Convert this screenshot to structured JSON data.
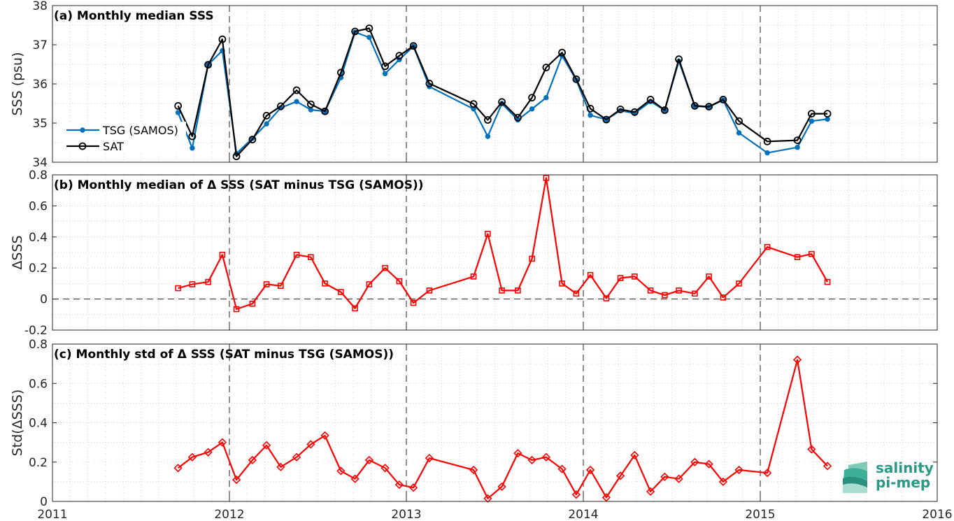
{
  "logo": {
    "line1": "salinity",
    "line2": "pi-mep"
  },
  "colors": {
    "tsg": "#0072bd",
    "sat": "#000000",
    "delta": "#ff0000",
    "logo": "#2a9a86"
  },
  "x_axis": {
    "range": [
      2011,
      2016
    ],
    "ticks": [
      2011,
      2012,
      2013,
      2014,
      2015,
      2016
    ],
    "labels": [
      "2011",
      "2012",
      "2013",
      "2014",
      "2015",
      "2016"
    ]
  },
  "chart_data": [
    {
      "type": "line",
      "title": "(a) Monthly median SSS",
      "ylabel": "SSS (psu)",
      "xlim": [
        2011,
        2016
      ],
      "ylim": [
        34,
        38
      ],
      "yticks": [
        34,
        35,
        36,
        37,
        38
      ],
      "ytick_labels": [
        "34",
        "35",
        "36",
        "37",
        "38"
      ],
      "grid": true,
      "legend_position": "left",
      "series": [
        {
          "name": "TSG (SAMOS)",
          "marker": "dot",
          "x": [
            2011.71,
            2011.79,
            2011.88,
            2011.96,
            2012.04,
            2012.13,
            2012.21,
            2012.29,
            2012.38,
            2012.46,
            2012.54,
            2012.63,
            2012.71,
            2012.79,
            2012.88,
            2012.96,
            2013.04,
            2013.13,
            2013.38,
            2013.46,
            2013.54,
            2013.63,
            2013.71,
            2013.79,
            2013.88,
            2013.96,
            2014.04,
            2014.13,
            2014.21,
            2014.29,
            2014.38,
            2014.46,
            2014.54,
            2014.63,
            2014.71,
            2014.79,
            2014.88,
            2015.04,
            2015.21,
            2015.29,
            2015.38
          ],
          "y": [
            35.27,
            34.36,
            36.49,
            36.85,
            34.22,
            34.61,
            34.98,
            35.39,
            35.55,
            35.34,
            35.3,
            36.16,
            37.32,
            37.19,
            36.26,
            36.62,
            36.96,
            35.93,
            35.36,
            34.66,
            35.5,
            35.08,
            35.36,
            35.65,
            36.72,
            36.1,
            35.2,
            35.09,
            35.32,
            35.25,
            35.55,
            35.33,
            36.58,
            35.43,
            35.41,
            35.59,
            34.75,
            34.24,
            34.38,
            35.05,
            35.1
          ]
        },
        {
          "name": "SAT",
          "marker": "circle",
          "x": [
            2011.71,
            2011.79,
            2011.88,
            2011.96,
            2012.04,
            2012.13,
            2012.21,
            2012.29,
            2012.38,
            2012.46,
            2012.54,
            2012.63,
            2012.71,
            2012.79,
            2012.88,
            2012.96,
            2013.04,
            2013.13,
            2013.38,
            2013.46,
            2013.54,
            2013.63,
            2013.71,
            2013.79,
            2013.88,
            2013.96,
            2014.04,
            2014.13,
            2014.21,
            2014.29,
            2014.38,
            2014.46,
            2014.54,
            2014.63,
            2014.71,
            2014.79,
            2014.88,
            2015.04,
            2015.21,
            2015.29,
            2015.38
          ],
          "y": [
            35.44,
            34.66,
            36.49,
            37.14,
            34.15,
            34.58,
            35.19,
            35.43,
            35.84,
            35.48,
            35.3,
            36.29,
            37.34,
            37.42,
            36.45,
            36.72,
            36.97,
            36.01,
            35.49,
            35.08,
            35.54,
            35.14,
            35.65,
            36.42,
            36.8,
            36.12,
            35.37,
            35.09,
            35.35,
            35.28,
            35.6,
            35.33,
            36.63,
            35.44,
            35.42,
            35.6,
            35.05,
            34.53,
            34.56,
            35.24,
            35.24
          ]
        }
      ]
    },
    {
      "type": "line",
      "title": "(b) Monthly median of Δ SSS (SAT minus TSG (SAMOS))",
      "ylabel": "ΔSSS",
      "xlim": [
        2011,
        2016
      ],
      "ylim": [
        -0.2,
        0.8
      ],
      "yticks": [
        -0.2,
        0,
        0.2,
        0.4,
        0.6,
        0.8
      ],
      "ytick_labels": [
        "-0.2",
        "0",
        "0.2",
        "0.4",
        "0.6",
        "0.8"
      ],
      "grid": true,
      "zero_line": true,
      "series": [
        {
          "marker": "square",
          "x": [
            2011.71,
            2011.79,
            2011.88,
            2011.96,
            2012.04,
            2012.13,
            2012.21,
            2012.29,
            2012.38,
            2012.46,
            2012.54,
            2012.63,
            2012.71,
            2012.79,
            2012.88,
            2012.96,
            2013.04,
            2013.13,
            2013.38,
            2013.46,
            2013.54,
            2013.63,
            2013.71,
            2013.79,
            2013.88,
            2013.96,
            2014.04,
            2014.13,
            2014.21,
            2014.29,
            2014.38,
            2014.46,
            2014.54,
            2014.63,
            2014.71,
            2014.79,
            2014.88,
            2015.04,
            2015.21,
            2015.29,
            2015.38
          ],
          "y": [
            0.07,
            0.095,
            0.11,
            0.285,
            -0.065,
            -0.03,
            0.095,
            0.085,
            0.285,
            0.27,
            0.1,
            0.045,
            -0.06,
            0.095,
            0.2,
            0.115,
            -0.025,
            0.055,
            0.145,
            0.42,
            0.055,
            0.055,
            0.26,
            0.78,
            0.1,
            0.035,
            0.155,
            0.005,
            0.135,
            0.145,
            0.055,
            0.025,
            0.055,
            0.035,
            0.145,
            0.01,
            0.1,
            0.335,
            0.27,
            0.29,
            0.11
          ]
        }
      ]
    },
    {
      "type": "line",
      "title": "(c) Monthly std of Δ SSS (SAT minus TSG (SAMOS))",
      "ylabel": "Std(ΔSSS)",
      "xlim": [
        2011,
        2016
      ],
      "ylim": [
        0,
        0.8
      ],
      "yticks": [
        0,
        0.2,
        0.4,
        0.6,
        0.8
      ],
      "ytick_labels": [
        "0",
        "0.2",
        "0.4",
        "0.6",
        "0.8"
      ],
      "grid": true,
      "series": [
        {
          "marker": "diamond",
          "x": [
            2011.71,
            2011.79,
            2011.88,
            2011.96,
            2012.04,
            2012.13,
            2012.21,
            2012.29,
            2012.38,
            2012.46,
            2012.54,
            2012.63,
            2012.71,
            2012.79,
            2012.88,
            2012.96,
            2013.04,
            2013.13,
            2013.38,
            2013.46,
            2013.54,
            2013.63,
            2013.71,
            2013.79,
            2013.88,
            2013.96,
            2014.04,
            2014.13,
            2014.21,
            2014.29,
            2014.38,
            2014.46,
            2014.54,
            2014.63,
            2014.71,
            2014.79,
            2014.88,
            2015.04,
            2015.21,
            2015.29,
            2015.38
          ],
          "y": [
            0.17,
            0.225,
            0.25,
            0.3,
            0.11,
            0.21,
            0.285,
            0.175,
            0.225,
            0.29,
            0.335,
            0.155,
            0.115,
            0.21,
            0.17,
            0.085,
            0.07,
            0.22,
            0.16,
            0.015,
            0.075,
            0.245,
            0.21,
            0.225,
            0.165,
            0.035,
            0.16,
            0.02,
            0.13,
            0.235,
            0.05,
            0.125,
            0.115,
            0.2,
            0.19,
            0.1,
            0.16,
            0.145,
            0.72,
            0.265,
            0.18
          ]
        }
      ]
    }
  ]
}
